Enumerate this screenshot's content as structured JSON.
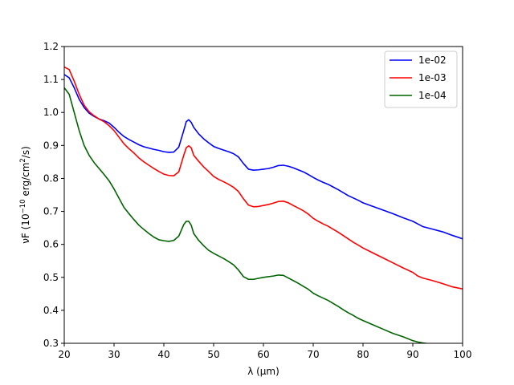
{
  "chart_data": {
    "type": "line",
    "xlabel": "λ (μm)",
    "ylabel_parts": {
      "prefix": "νF (10",
      "exp": "−10",
      "mid": " erg/cm",
      "exp2": "2",
      "suffix": "/s)"
    },
    "xlim": [
      20,
      100
    ],
    "ylim": [
      0.3,
      1.2
    ],
    "xticks": [
      20,
      30,
      40,
      50,
      60,
      70,
      80,
      90,
      100
    ],
    "yticks": [
      0.3,
      0.4,
      0.5,
      0.6,
      0.7,
      0.8,
      0.9,
      1.0,
      1.1,
      1.2
    ],
    "ytick_labels": [
      "0.3",
      "0.4",
      "0.5",
      "0.6",
      "0.7",
      "0.8",
      "0.9",
      "1.0",
      "1.1",
      "1.2"
    ],
    "grid": false,
    "legend_position": "top-right",
    "series": [
      {
        "name": "1e-02",
        "color": "#0000ff",
        "points": [
          [
            20,
            1.115
          ],
          [
            21,
            1.105
          ],
          [
            22,
            1.075
          ],
          [
            23,
            1.04
          ],
          [
            24,
            1.015
          ],
          [
            25,
            0.998
          ],
          [
            26,
            0.988
          ],
          [
            27,
            0.98
          ],
          [
            28,
            0.975
          ],
          [
            29,
            0.968
          ],
          [
            30,
            0.955
          ],
          [
            31,
            0.94
          ],
          [
            32,
            0.927
          ],
          [
            33,
            0.918
          ],
          [
            34,
            0.91
          ],
          [
            35,
            0.902
          ],
          [
            36,
            0.896
          ],
          [
            37,
            0.892
          ],
          [
            38,
            0.888
          ],
          [
            39,
            0.885
          ],
          [
            40,
            0.881
          ],
          [
            41,
            0.879
          ],
          [
            42,
            0.88
          ],
          [
            43,
            0.895
          ],
          [
            44,
            0.945
          ],
          [
            44.5,
            0.972
          ],
          [
            45,
            0.978
          ],
          [
            45.5,
            0.97
          ],
          [
            46,
            0.955
          ],
          [
            47,
            0.935
          ],
          [
            48,
            0.92
          ],
          [
            49,
            0.908
          ],
          [
            50,
            0.897
          ],
          [
            51,
            0.891
          ],
          [
            52,
            0.886
          ],
          [
            53,
            0.881
          ],
          [
            54,
            0.875
          ],
          [
            55,
            0.865
          ],
          [
            56,
            0.845
          ],
          [
            57,
            0.828
          ],
          [
            58,
            0.825
          ],
          [
            59,
            0.826
          ],
          [
            60,
            0.828
          ],
          [
            61,
            0.83
          ],
          [
            62,
            0.834
          ],
          [
            63,
            0.839
          ],
          [
            64,
            0.84
          ],
          [
            65,
            0.837
          ],
          [
            66,
            0.832
          ],
          [
            67,
            0.826
          ],
          [
            68,
            0.82
          ],
          [
            69,
            0.812
          ],
          [
            70,
            0.803
          ],
          [
            71,
            0.795
          ],
          [
            72,
            0.788
          ],
          [
            73,
            0.782
          ],
          [
            74,
            0.774
          ],
          [
            75,
            0.766
          ],
          [
            76,
            0.757
          ],
          [
            77,
            0.748
          ],
          [
            78,
            0.741
          ],
          [
            79,
            0.734
          ],
          [
            80,
            0.726
          ],
          [
            82,
            0.715
          ],
          [
            84,
            0.704
          ],
          [
            86,
            0.693
          ],
          [
            88,
            0.681
          ],
          [
            90,
            0.67
          ],
          [
            91,
            0.662
          ],
          [
            92,
            0.654
          ],
          [
            94,
            0.646
          ],
          [
            96,
            0.638
          ],
          [
            98,
            0.627
          ],
          [
            100,
            0.617
          ]
        ]
      },
      {
        "name": "1e-03",
        "color": "#ff0000",
        "points": [
          [
            20,
            1.138
          ],
          [
            21,
            1.13
          ],
          [
            22,
            1.095
          ],
          [
            23,
            1.055
          ],
          [
            24,
            1.022
          ],
          [
            25,
            1.002
          ],
          [
            26,
            0.99
          ],
          [
            27,
            0.98
          ],
          [
            28,
            0.972
          ],
          [
            29,
            0.96
          ],
          [
            30,
            0.945
          ],
          [
            31,
            0.925
          ],
          [
            32,
            0.905
          ],
          [
            33,
            0.89
          ],
          [
            34,
            0.877
          ],
          [
            35,
            0.862
          ],
          [
            36,
            0.85
          ],
          [
            37,
            0.84
          ],
          [
            38,
            0.83
          ],
          [
            39,
            0.821
          ],
          [
            40,
            0.813
          ],
          [
            41,
            0.809
          ],
          [
            42,
            0.808
          ],
          [
            43,
            0.82
          ],
          [
            44,
            0.87
          ],
          [
            44.5,
            0.893
          ],
          [
            45,
            0.899
          ],
          [
            45.5,
            0.893
          ],
          [
            46,
            0.87
          ],
          [
            47,
            0.852
          ],
          [
            48,
            0.835
          ],
          [
            49,
            0.821
          ],
          [
            50,
            0.806
          ],
          [
            51,
            0.797
          ],
          [
            52,
            0.79
          ],
          [
            53,
            0.782
          ],
          [
            54,
            0.773
          ],
          [
            55,
            0.76
          ],
          [
            56,
            0.738
          ],
          [
            57,
            0.719
          ],
          [
            58,
            0.714
          ],
          [
            59,
            0.715
          ],
          [
            60,
            0.718
          ],
          [
            61,
            0.721
          ],
          [
            62,
            0.725
          ],
          [
            63,
            0.73
          ],
          [
            64,
            0.731
          ],
          [
            65,
            0.726
          ],
          [
            66,
            0.718
          ],
          [
            67,
            0.71
          ],
          [
            68,
            0.702
          ],
          [
            69,
            0.692
          ],
          [
            70,
            0.679
          ],
          [
            71,
            0.67
          ],
          [
            72,
            0.662
          ],
          [
            73,
            0.655
          ],
          [
            74,
            0.646
          ],
          [
            75,
            0.637
          ],
          [
            76,
            0.627
          ],
          [
            77,
            0.617
          ],
          [
            78,
            0.607
          ],
          [
            79,
            0.598
          ],
          [
            80,
            0.589
          ],
          [
            82,
            0.574
          ],
          [
            84,
            0.559
          ],
          [
            86,
            0.544
          ],
          [
            88,
            0.529
          ],
          [
            90,
            0.515
          ],
          [
            91,
            0.504
          ],
          [
            92,
            0.498
          ],
          [
            94,
            0.49
          ],
          [
            96,
            0.481
          ],
          [
            98,
            0.471
          ],
          [
            100,
            0.465
          ]
        ]
      },
      {
        "name": "1e-04",
        "color": "#006400",
        "points": [
          [
            20,
            1.075
          ],
          [
            21,
            1.055
          ],
          [
            22,
            1.0
          ],
          [
            23,
            0.945
          ],
          [
            24,
            0.9
          ],
          [
            25,
            0.87
          ],
          [
            26,
            0.848
          ],
          [
            27,
            0.83
          ],
          [
            28,
            0.812
          ],
          [
            29,
            0.793
          ],
          [
            30,
            0.768
          ],
          [
            31,
            0.74
          ],
          [
            32,
            0.712
          ],
          [
            33,
            0.693
          ],
          [
            34,
            0.675
          ],
          [
            35,
            0.658
          ],
          [
            36,
            0.645
          ],
          [
            37,
            0.633
          ],
          [
            38,
            0.622
          ],
          [
            39,
            0.614
          ],
          [
            40,
            0.611
          ],
          [
            41,
            0.609
          ],
          [
            42,
            0.612
          ],
          [
            43,
            0.625
          ],
          [
            44,
            0.66
          ],
          [
            44.5,
            0.67
          ],
          [
            45,
            0.67
          ],
          [
            45.5,
            0.658
          ],
          [
            46,
            0.633
          ],
          [
            47,
            0.612
          ],
          [
            48,
            0.596
          ],
          [
            49,
            0.582
          ],
          [
            50,
            0.573
          ],
          [
            51,
            0.565
          ],
          [
            52,
            0.557
          ],
          [
            53,
            0.548
          ],
          [
            54,
            0.538
          ],
          [
            55,
            0.522
          ],
          [
            56,
            0.502
          ],
          [
            57,
            0.494
          ],
          [
            58,
            0.494
          ],
          [
            59,
            0.497
          ],
          [
            60,
            0.5
          ],
          [
            61,
            0.502
          ],
          [
            62,
            0.504
          ],
          [
            63,
            0.507
          ],
          [
            64,
            0.506
          ],
          [
            65,
            0.498
          ],
          [
            66,
            0.49
          ],
          [
            67,
            0.482
          ],
          [
            68,
            0.473
          ],
          [
            69,
            0.464
          ],
          [
            70,
            0.452
          ],
          [
            71,
            0.444
          ],
          [
            72,
            0.437
          ],
          [
            73,
            0.43
          ],
          [
            74,
            0.421
          ],
          [
            75,
            0.412
          ],
          [
            76,
            0.402
          ],
          [
            77,
            0.393
          ],
          [
            78,
            0.385
          ],
          [
            79,
            0.376
          ],
          [
            80,
            0.369
          ],
          [
            82,
            0.356
          ],
          [
            84,
            0.343
          ],
          [
            86,
            0.33
          ],
          [
            88,
            0.32
          ],
          [
            90,
            0.308
          ],
          [
            91,
            0.304
          ],
          [
            92,
            0.301
          ],
          [
            94,
            0.297
          ],
          [
            96,
            0.293
          ],
          [
            97,
            0.29
          ],
          [
            100,
            0.286
          ]
        ]
      }
    ]
  }
}
